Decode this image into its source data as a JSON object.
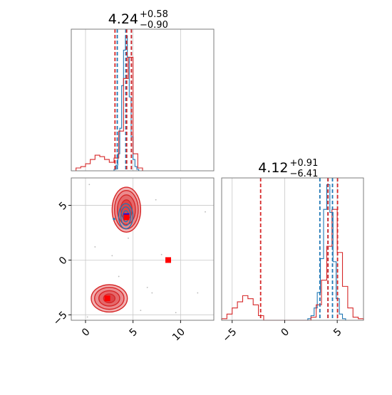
{
  "chart_data": {
    "type": "corner",
    "grid": true,
    "colors": {
      "blue": "#1f77b4",
      "red": "#d62728",
      "red_fill": "#f0a3a4",
      "red_mid": "#e36164"
    },
    "panels": [
      {
        "name": "param-1-marginal",
        "type": "histogram",
        "title_value": "4.24",
        "title_plus": "+0.58",
        "title_minus": "−0.90",
        "xlim": [
          -1.5,
          13.5
        ],
        "xticks": [
          0,
          5,
          10
        ],
        "series": [
          {
            "name": "",
            "color": "#1f77b4",
            "bin_edges": [
              3.0,
              3.2,
              3.4,
              3.6,
              3.8,
              4.0,
              4.2,
              4.4,
              4.6,
              4.8,
              5.0,
              5.2,
              5.4,
              5.6
            ],
            "counts": [
              1,
              4,
              12,
              30,
              60,
              85,
              95,
              80,
              52,
              24,
              8,
              3,
              1
            ]
          },
          {
            "name": "",
            "color": "#d62728",
            "bin_edges": [
              -1.0,
              -0.5,
              0.0,
              0.5,
              1.0,
              1.5,
              2.0,
              2.5,
              3.0,
              3.5,
              4.0,
              4.5,
              5.0,
              5.5,
              6.0
            ],
            "counts": [
              2,
              3,
              5,
              8,
              11,
              10,
              8,
              6,
              9,
              28,
              65,
              80,
              12,
              2
            ]
          }
        ],
        "quantile_lines": [
          {
            "color": "#1f77b4",
            "x": [
              3.34,
              4.24,
              4.82
            ]
          },
          {
            "color": "#d62728",
            "x": [
              3.1,
              4.33,
              4.83
            ]
          }
        ]
      },
      {
        "name": "param-2-marginal",
        "type": "histogram",
        "title_value": "4.12",
        "title_plus": "+0.91",
        "title_minus": "−6.41",
        "xlim": [
          -6.0,
          7.5
        ],
        "xticks": [
          -5,
          0,
          5
        ],
        "series": [
          {
            "name": "",
            "color": "#1f77b4",
            "bin_edges": [
              2.2,
              2.5,
              2.8,
              3.1,
              3.4,
              3.7,
              4.0,
              4.3,
              4.6,
              4.9,
              5.2,
              5.5,
              5.8
            ],
            "counts": [
              1,
              3,
              8,
              18,
              40,
              72,
              88,
              70,
              38,
              14,
              4,
              1
            ]
          },
          {
            "name": "",
            "color": "#d62728",
            "bin_edges": [
              -6.0,
              -5.5,
              -5.0,
              -4.5,
              -4.0,
              -3.5,
              -3.0,
              -2.5,
              -2.0,
              -1.5,
              -1.0,
              -0.5,
              0.0,
              0.5,
              1.0,
              1.5,
              2.0,
              2.5,
              3.0,
              3.5,
              4.0,
              4.5,
              5.0,
              5.5,
              6.0,
              6.5,
              7.0,
              7.5
            ],
            "counts": [
              1,
              4,
              8,
              12,
              16,
              14,
              10,
              3,
              0,
              0,
              0,
              0,
              0,
              0,
              0,
              0,
              0,
              2,
              10,
              26,
              48,
              72,
              44,
              22,
              8,
              2,
              1
            ]
          }
        ],
        "quantile_lines": [
          {
            "color": "#1f77b4",
            "x": [
              3.35,
              4.12,
              4.55
            ]
          },
          {
            "color": "#d62728",
            "x": [
              -2.29,
              4.12,
              5.03
            ]
          }
        ]
      },
      {
        "name": "joint-2d",
        "type": "contour-scatter",
        "xlim": [
          -1.5,
          13.5
        ],
        "ylim": [
          -5.5,
          7.5
        ],
        "xticks": [
          0,
          5,
          10
        ],
        "yticks": [
          -5,
          0,
          5
        ],
        "blue_contours": {
          "center": [
            4.24,
            4.0
          ],
          "radii": [
            [
              0.75,
              1.15
            ],
            [
              0.52,
              0.85
            ],
            [
              0.3,
              0.5
            ]
          ]
        },
        "red_modes": [
          {
            "center": [
              4.3,
              4.6
            ],
            "radii": [
              [
                1.5,
                2.05
              ],
              [
                1.25,
                1.75
              ],
              [
                0.95,
                1.35
              ],
              [
                0.6,
                0.9
              ]
            ]
          },
          {
            "center": [
              2.5,
              -3.5
            ],
            "radii": [
              [
                1.9,
                1.25
              ],
              [
                1.55,
                1.0
              ],
              [
                1.1,
                0.7
              ],
              [
                0.6,
                0.4
              ]
            ]
          }
        ],
        "markers": [
          {
            "color": "#1f77b4",
            "x": 4.3,
            "y": 4.0
          },
          {
            "color": "#d62728",
            "x": 4.3,
            "y": 3.9
          },
          {
            "color": "#d62728",
            "x": 8.7,
            "y": 0.0
          },
          {
            "color": "#d62728",
            "x": 2.3,
            "y": -3.5
          }
        ],
        "outliers": [
          [
            0.4,
            6.9
          ],
          [
            12.6,
            4.4
          ],
          [
            11.8,
            -3.0
          ],
          [
            7.0,
            -3.0
          ],
          [
            4.5,
            2.0
          ],
          [
            6.5,
            -2.5
          ],
          [
            0.2,
            -5.2
          ],
          [
            8.0,
            0.5
          ],
          [
            3.5,
            -1.5
          ],
          [
            5.8,
            -4.6
          ],
          [
            1.0,
            1.2
          ],
          [
            9.5,
            -4.8
          ],
          [
            7.4,
            5.5
          ],
          [
            2.8,
            0.4
          ]
        ]
      }
    ]
  }
}
